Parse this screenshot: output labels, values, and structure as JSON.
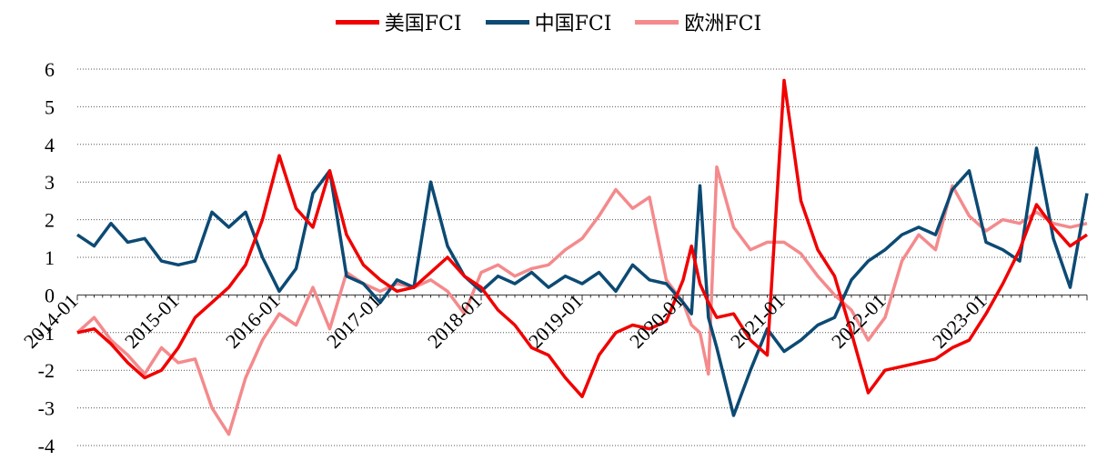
{
  "chart_data": {
    "type": "line",
    "title": "",
    "xlabel": "",
    "ylabel": "",
    "ylim": [
      -4,
      6
    ],
    "xlim": [
      "2014-01",
      "2024-01"
    ],
    "y_ticks": [
      "6",
      "5",
      "4",
      "3",
      "2",
      "1",
      "0",
      "-1",
      "-2",
      "-3",
      "-4"
    ],
    "x_ticks": [
      "2014-01",
      "2015-01",
      "2016-01",
      "2017-01",
      "2018-01",
      "2019-01",
      "2020-01",
      "2021-01",
      "2022-01",
      "2023-01"
    ],
    "grid": "horizontal dotted",
    "legend_position": "top-center",
    "series": [
      {
        "name": "美国FCI",
        "color": "#f00000",
        "x": [
          "2014-01",
          "2014-03",
          "2014-05",
          "2014-07",
          "2014-09",
          "2014-11",
          "2015-01",
          "2015-03",
          "2015-05",
          "2015-07",
          "2015-09",
          "2015-11",
          "2016-01",
          "2016-03",
          "2016-05",
          "2016-07",
          "2016-09",
          "2016-11",
          "2017-01",
          "2017-03",
          "2017-05",
          "2017-07",
          "2017-09",
          "2017-11",
          "2018-01",
          "2018-03",
          "2018-05",
          "2018-07",
          "2018-09",
          "2018-11",
          "2019-01",
          "2019-03",
          "2019-05",
          "2019-07",
          "2019-09",
          "2019-11",
          "2020-01",
          "2020-02",
          "2020-03",
          "2020-04",
          "2020-05",
          "2020-07",
          "2020-09",
          "2020-11",
          "2021-01",
          "2021-03",
          "2021-05",
          "2021-07",
          "2021-09",
          "2021-11",
          "2022-01",
          "2022-03",
          "2022-05",
          "2022-07",
          "2022-09",
          "2022-11",
          "2023-01",
          "2023-03",
          "2023-05",
          "2023-07",
          "2023-09",
          "2023-11",
          "2024-01"
        ],
        "values": [
          -1.0,
          -0.9,
          -1.3,
          -1.8,
          -2.2,
          -2.0,
          -1.4,
          -0.6,
          -0.2,
          0.2,
          0.8,
          2.0,
          3.7,
          2.3,
          1.8,
          3.3,
          1.6,
          0.8,
          0.4,
          0.1,
          0.2,
          0.6,
          1.0,
          0.5,
          0.2,
          -0.4,
          -0.8,
          -1.4,
          -1.6,
          -2.2,
          -2.7,
          -1.6,
          -1.0,
          -0.8,
          -0.9,
          -0.7,
          0.4,
          1.3,
          0.3,
          -0.2,
          -0.6,
          -0.5,
          -1.2,
          -1.6,
          5.7,
          2.5,
          1.2,
          0.5,
          -1.0,
          -2.6,
          -2.0,
          -1.9,
          -1.8,
          -1.7,
          -1.4,
          -1.2,
          -0.5,
          0.3,
          1.2,
          2.4,
          1.8,
          1.3,
          1.6
        ]
      },
      {
        "name": "中国FCI",
        "color": "#0c4a73",
        "x": [
          "2014-01",
          "2014-03",
          "2014-05",
          "2014-07",
          "2014-09",
          "2014-11",
          "2015-01",
          "2015-03",
          "2015-05",
          "2015-07",
          "2015-09",
          "2015-11",
          "2016-01",
          "2016-03",
          "2016-05",
          "2016-07",
          "2016-09",
          "2016-11",
          "2017-01",
          "2017-03",
          "2017-05",
          "2017-07",
          "2017-09",
          "2017-11",
          "2018-01",
          "2018-03",
          "2018-05",
          "2018-07",
          "2018-09",
          "2018-11",
          "2019-01",
          "2019-03",
          "2019-05",
          "2019-07",
          "2019-09",
          "2019-11",
          "2020-01",
          "2020-02",
          "2020-03",
          "2020-04",
          "2020-05",
          "2020-07",
          "2020-09",
          "2020-11",
          "2021-01",
          "2021-03",
          "2021-05",
          "2021-07",
          "2021-09",
          "2021-11",
          "2022-01",
          "2022-03",
          "2022-05",
          "2022-07",
          "2022-09",
          "2022-11",
          "2023-01",
          "2023-03",
          "2023-05",
          "2023-07",
          "2023-09",
          "2023-11",
          "2024-01"
        ],
        "values": [
          1.6,
          1.3,
          1.9,
          1.4,
          1.5,
          0.9,
          0.8,
          0.9,
          2.2,
          1.8,
          2.2,
          1.0,
          0.1,
          0.7,
          2.7,
          3.3,
          0.5,
          0.3,
          -0.2,
          0.4,
          0.2,
          3.0,
          1.3,
          0.5,
          0.1,
          0.5,
          0.3,
          0.6,
          0.2,
          0.5,
          0.3,
          0.6,
          0.1,
          0.8,
          0.4,
          0.3,
          -0.2,
          -0.5,
          2.9,
          -0.6,
          -1.4,
          -3.2,
          -2.0,
          -0.9,
          -1.5,
          -1.2,
          -0.8,
          -0.6,
          0.4,
          0.9,
          1.2,
          1.6,
          1.8,
          1.6,
          2.8,
          3.3,
          1.4,
          1.2,
          0.9,
          3.9,
          1.5,
          0.2,
          2.7
        ]
      },
      {
        "name": "欧洲FCI",
        "color": "#f48a8c",
        "x": [
          "2014-01",
          "2014-03",
          "2014-05",
          "2014-07",
          "2014-09",
          "2014-11",
          "2015-01",
          "2015-03",
          "2015-05",
          "2015-07",
          "2015-09",
          "2015-11",
          "2016-01",
          "2016-03",
          "2016-05",
          "2016-07",
          "2016-09",
          "2016-11",
          "2017-01",
          "2017-03",
          "2017-05",
          "2017-07",
          "2017-09",
          "2017-11",
          "2018-01",
          "2018-03",
          "2018-05",
          "2018-07",
          "2018-09",
          "2018-11",
          "2019-01",
          "2019-03",
          "2019-05",
          "2019-07",
          "2019-09",
          "2019-11",
          "2020-01",
          "2020-02",
          "2020-03",
          "2020-04",
          "2020-05",
          "2020-07",
          "2020-09",
          "2020-11",
          "2021-01",
          "2021-03",
          "2021-05",
          "2021-07",
          "2021-09",
          "2021-11",
          "2022-01",
          "2022-03",
          "2022-05",
          "2022-07",
          "2022-09",
          "2022-11",
          "2023-01",
          "2023-03",
          "2023-05",
          "2023-07",
          "2023-09",
          "2023-11",
          "2024-01"
        ],
        "values": [
          -1.0,
          -0.6,
          -1.2,
          -1.6,
          -2.1,
          -1.4,
          -1.8,
          -1.7,
          -3.0,
          -3.7,
          -2.2,
          -1.2,
          -0.5,
          -0.8,
          0.2,
          -0.9,
          0.6,
          0.3,
          0.1,
          0.3,
          0.2,
          0.4,
          0.1,
          -0.5,
          0.6,
          0.8,
          0.5,
          0.7,
          0.8,
          1.2,
          1.5,
          2.1,
          2.8,
          2.3,
          2.6,
          0.4,
          -0.2,
          -0.8,
          -1.0,
          -2.1,
          3.4,
          1.8,
          1.2,
          1.4,
          1.4,
          1.1,
          0.5,
          0.0,
          -0.4,
          -1.2,
          -0.6,
          0.9,
          1.6,
          1.2,
          2.9,
          2.1,
          1.7,
          2.0,
          1.9,
          2.2,
          1.9,
          1.8,
          1.9
        ]
      }
    ]
  }
}
